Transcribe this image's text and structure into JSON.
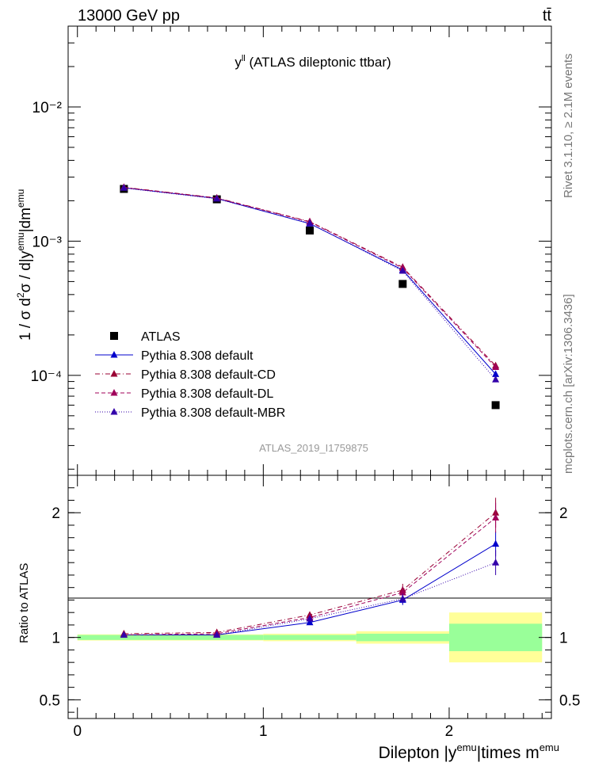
{
  "header": {
    "left": "13000 GeV pp",
    "right": "tt̄"
  },
  "side_labels": {
    "upper": "Rivet 3.1.10, ≥ 2.1M events",
    "lower": "mcplots.cern.ch [arXiv:1306.3436]"
  },
  "watermark": "ATLAS_2019_I1759875",
  "chart_data": [
    {
      "type": "scatter",
      "title": "y^ll (ATLAS dileptonic ttbar)",
      "ylabel": "1 / σ  d²σ / d|y^emu|dm^emu",
      "yscale": "log",
      "xlim": [
        -0.05,
        2.55
      ],
      "ylim": [
        1.8e-05,
        0.04
      ],
      "ytick_labels": [
        "10⁻⁴",
        "10⁻³",
        "10⁻²"
      ],
      "legend_position": "middle-left",
      "series": [
        {
          "name": "ATLAS",
          "color": "#000000",
          "marker": "square",
          "x": [
            0.25,
            0.75,
            1.25,
            1.75,
            2.25
          ],
          "y": [
            0.00245,
            0.00205,
            0.0012,
            0.00048,
            6e-05
          ]
        },
        {
          "name": "Pythia 8.308 default",
          "color": "#0000cc",
          "marker": "triangle",
          "line": "solid",
          "x": [
            0.25,
            0.75,
            1.25,
            1.75,
            2.25
          ],
          "y": [
            0.0025,
            0.00208,
            0.00135,
            0.00061,
            0.000102
          ]
        },
        {
          "name": "Pythia 8.308 default-CD",
          "color": "#990033",
          "marker": "triangle",
          "line": "dashdot",
          "x": [
            0.25,
            0.75,
            1.25,
            1.75,
            2.25
          ],
          "y": [
            0.00252,
            0.0021,
            0.0014,
            0.00064,
            0.000118
          ]
        },
        {
          "name": "Pythia 8.308 default-DL",
          "color": "#a0005a",
          "marker": "triangle",
          "line": "dashed",
          "x": [
            0.25,
            0.75,
            1.25,
            1.75,
            2.25
          ],
          "y": [
            0.00251,
            0.00209,
            0.00139,
            0.00063,
            0.000115
          ]
        },
        {
          "name": "Pythia 8.308 default-MBR",
          "color": "#3300aa",
          "marker": "triangle",
          "line": "dotted",
          "x": [
            0.25,
            0.75,
            1.25,
            1.75,
            2.25
          ],
          "y": [
            0.00249,
            0.00207,
            0.00136,
            0.0006,
            9.3e-05
          ]
        }
      ]
    },
    {
      "type": "scatter",
      "ylabel": "Ratio to ATLAS",
      "xlabel": "Dilepton |y^emu|times m^emu",
      "xlim": [
        -0.05,
        2.55
      ],
      "ylim": [
        0.35,
        2.3
      ],
      "ytick_labels": [
        "0.5",
        "1",
        "2"
      ],
      "xtick_labels": [
        "0",
        "1",
        "2"
      ],
      "bands": {
        "bins": [
          [
            0,
            0.5
          ],
          [
            0.5,
            1.0
          ],
          [
            1.0,
            1.5
          ],
          [
            1.5,
            2.0
          ],
          [
            2.0,
            2.5
          ]
        ],
        "stat": [
          0.02,
          0.02,
          0.02,
          0.03,
          0.11
        ],
        "total": [
          0.025,
          0.025,
          0.03,
          0.05,
          0.2
        ],
        "stat_color": "#99ff99",
        "total_color": "#ffff99"
      },
      "series": [
        {
          "name": "Pythia 8.308 default",
          "color": "#0000cc",
          "marker": "triangle",
          "line": "solid",
          "x": [
            0.25,
            0.75,
            1.25,
            1.75,
            2.25
          ],
          "y": [
            1.02,
            1.02,
            1.12,
            1.3,
            1.75
          ],
          "err": [
            0.01,
            0.01,
            0.02,
            0.04,
            0.1
          ]
        },
        {
          "name": "Pythia 8.308 default-CD",
          "color": "#990033",
          "marker": "triangle",
          "line": "dashdot",
          "x": [
            0.25,
            0.75,
            1.25,
            1.75,
            2.25
          ],
          "y": [
            1.03,
            1.04,
            1.18,
            1.38,
            2.0
          ],
          "err": [
            0.01,
            0.01,
            0.02,
            0.05,
            0.12
          ]
        },
        {
          "name": "Pythia 8.308 default-DL",
          "color": "#a0005a",
          "marker": "triangle",
          "line": "dashed",
          "x": [
            0.25,
            0.75,
            1.25,
            1.75,
            2.25
          ],
          "y": [
            1.02,
            1.03,
            1.16,
            1.36,
            1.96
          ],
          "err": [
            0.01,
            0.01,
            0.02,
            0.05,
            0.12
          ]
        },
        {
          "name": "Pythia 8.308 default-MBR",
          "color": "#3300aa",
          "marker": "triangle",
          "line": "dotted",
          "x": [
            0.25,
            0.75,
            1.25,
            1.75,
            2.25
          ],
          "y": [
            1.02,
            1.02,
            1.15,
            1.31,
            1.6
          ],
          "err": [
            0.01,
            0.01,
            0.02,
            0.04,
            0.1
          ]
        }
      ]
    }
  ]
}
